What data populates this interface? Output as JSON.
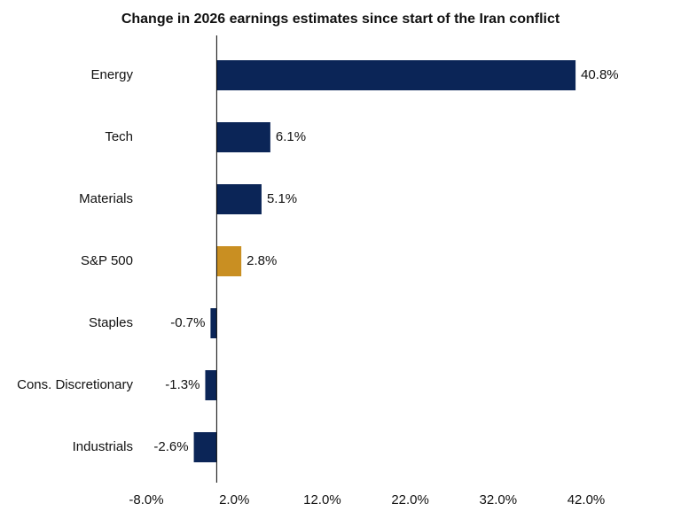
{
  "chart_data": {
    "type": "bar",
    "orientation": "horizontal",
    "title": "Change in 2026 earnings estimates since start of the Iran conflict",
    "categories": [
      "Energy",
      "Tech",
      "Materials",
      "S&P 500",
      "Staples",
      "Cons. Discretionary",
      "Industrials"
    ],
    "values": [
      40.8,
      6.1,
      5.1,
      2.8,
      -0.7,
      -1.3,
      -2.6
    ],
    "value_labels": [
      "40.8%",
      "6.1%",
      "5.1%",
      "2.8%",
      "-0.7%",
      "-1.3%",
      "-2.6%"
    ],
    "colors": [
      "#0b2557",
      "#0b2557",
      "#0b2557",
      "#c98f22",
      "#0b2557",
      "#0b2557",
      "#0b2557"
    ],
    "xlim": [
      -8,
      42
    ],
    "xticks": [
      {
        "value": -8,
        "label": "-8.0%"
      },
      {
        "value": 2,
        "label": "2.0%"
      },
      {
        "value": 12,
        "label": "12.0%"
      },
      {
        "value": 22,
        "label": "22.0%"
      },
      {
        "value": 32,
        "label": "32.0%"
      },
      {
        "value": 42,
        "label": "42.0%"
      }
    ],
    "grid": false
  }
}
